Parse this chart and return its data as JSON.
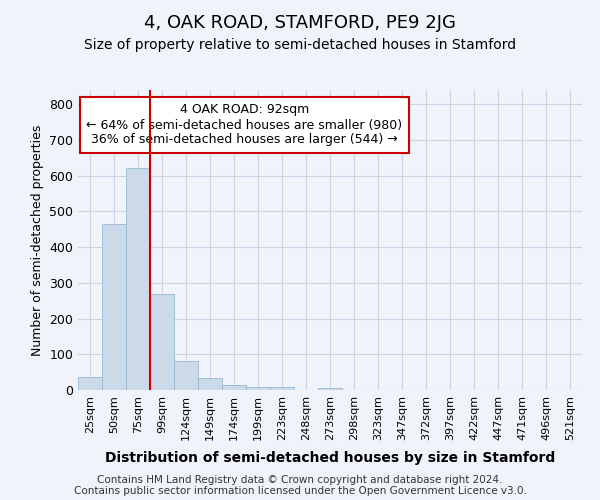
{
  "title": "4, OAK ROAD, STAMFORD, PE9 2JG",
  "subtitle": "Size of property relative to semi-detached houses in Stamford",
  "xlabel": "Distribution of semi-detached houses by size in Stamford",
  "ylabel": "Number of semi-detached properties",
  "bar_labels": [
    "25sqm",
    "50sqm",
    "75sqm",
    "99sqm",
    "124sqm",
    "149sqm",
    "174sqm",
    "199sqm",
    "223sqm",
    "248sqm",
    "273sqm",
    "298sqm",
    "323sqm",
    "347sqm",
    "372sqm",
    "397sqm",
    "422sqm",
    "447sqm",
    "471sqm",
    "496sqm",
    "521sqm"
  ],
  "bar_values": [
    37,
    465,
    623,
    270,
    80,
    35,
    14,
    9,
    8,
    0,
    5,
    0,
    0,
    0,
    0,
    0,
    0,
    0,
    0,
    0,
    0
  ],
  "bar_color": "#ccd9e8",
  "bar_edge_color": "#99b8d4",
  "vline_color": "#cc0000",
  "ylim": [
    0,
    840
  ],
  "yticks": [
    0,
    100,
    200,
    300,
    400,
    500,
    600,
    700,
    800
  ],
  "annotation_text": "4 OAK ROAD: 92sqm\n← 64% of semi-detached houses are smaller (980)\n36% of semi-detached houses are larger (544) →",
  "annotation_box_color": "#ffffff",
  "annotation_box_edge": "#cc0000",
  "footer_line1": "Contains HM Land Registry data © Crown copyright and database right 2024.",
  "footer_line2": "Contains public sector information licensed under the Open Government Licence v3.0.",
  "background_color": "#f0f4fa",
  "plot_background": "#f0f4fa",
  "grid_color": "#c8d4e8",
  "title_fontsize": 13,
  "subtitle_fontsize": 10,
  "xlabel_fontsize": 10,
  "ylabel_fontsize": 9,
  "footer_fontsize": 7.5,
  "annot_fontsize": 9
}
